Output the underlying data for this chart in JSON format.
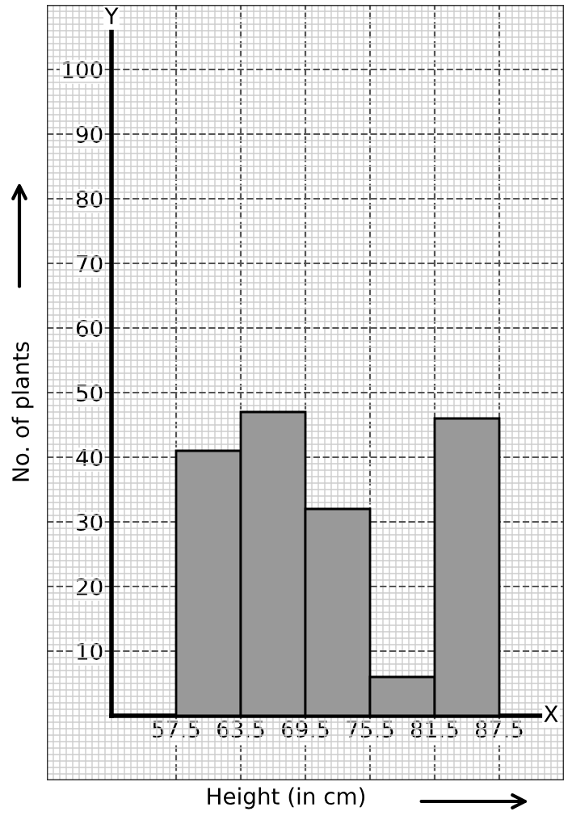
{
  "chart_data": {
    "type": "histogram",
    "xlabel": "Height (in cm)",
    "ylabel": "No. of plants",
    "bins": [
      57.5,
      63.5,
      69.5,
      75.5,
      81.5,
      87.5
    ],
    "values": [
      41,
      47,
      32,
      6,
      46
    ],
    "color": "#999999",
    "xlim": [
      45.5,
      93.5
    ],
    "ylim": [
      -10,
      110
    ],
    "xticks": [
      57.5,
      63.5,
      69.5,
      75.5,
      81.5,
      87.5
    ],
    "yticks": [
      10,
      20,
      30,
      40,
      50,
      60,
      70,
      80,
      90,
      100
    ],
    "grid": true,
    "annotations": [
      "X",
      "Y"
    ]
  }
}
